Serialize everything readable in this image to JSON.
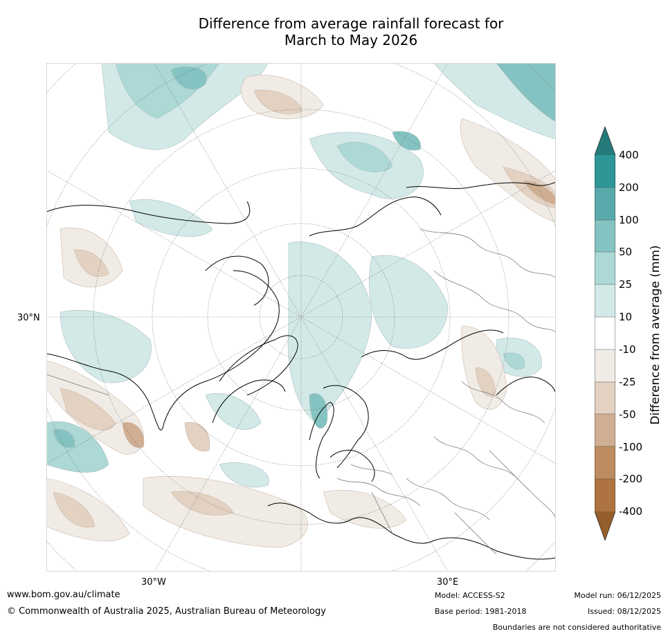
{
  "map": {
    "title_line1": "Difference from average rainfall forecast for",
    "title_line2": "March to May 2026",
    "lat_label": "30°N",
    "lon_labels": [
      "30°W",
      "30°E"
    ]
  },
  "legend": {
    "title": "Difference from average (mm)",
    "ticks": [
      "400",
      "200",
      "100",
      "50",
      "25",
      "10",
      "-10",
      "-25",
      "-50",
      "-100",
      "-200",
      "-400"
    ],
    "colors": {
      "over": "#257a7a",
      "c400": "#2e9696",
      "c200": "#59abab",
      "c100": "#84c3c1",
      "c50": "#acd8d6",
      "c25": "#d3e9e8",
      "neutral": "#ffffff",
      "n25": "#f1ebe6",
      "n50": "#e3d1c1",
      "n100": "#cfae93",
      "n200": "#bd8c60",
      "n400": "#ad7340",
      "under": "#935e2a"
    }
  },
  "footer": {
    "website": "www.bom.gov.au/climate",
    "copyright": "© Commonwealth of Australia 2025, Australian Bureau of Meteorology",
    "model": "Model: ACCESS-S2",
    "base_period": "Base period: 1981-2018",
    "model_run": "Model run: 06/12/2025",
    "issued": "Issued: 08/12/2025",
    "disclaimer": "Boundaries are not considered authoritative"
  }
}
